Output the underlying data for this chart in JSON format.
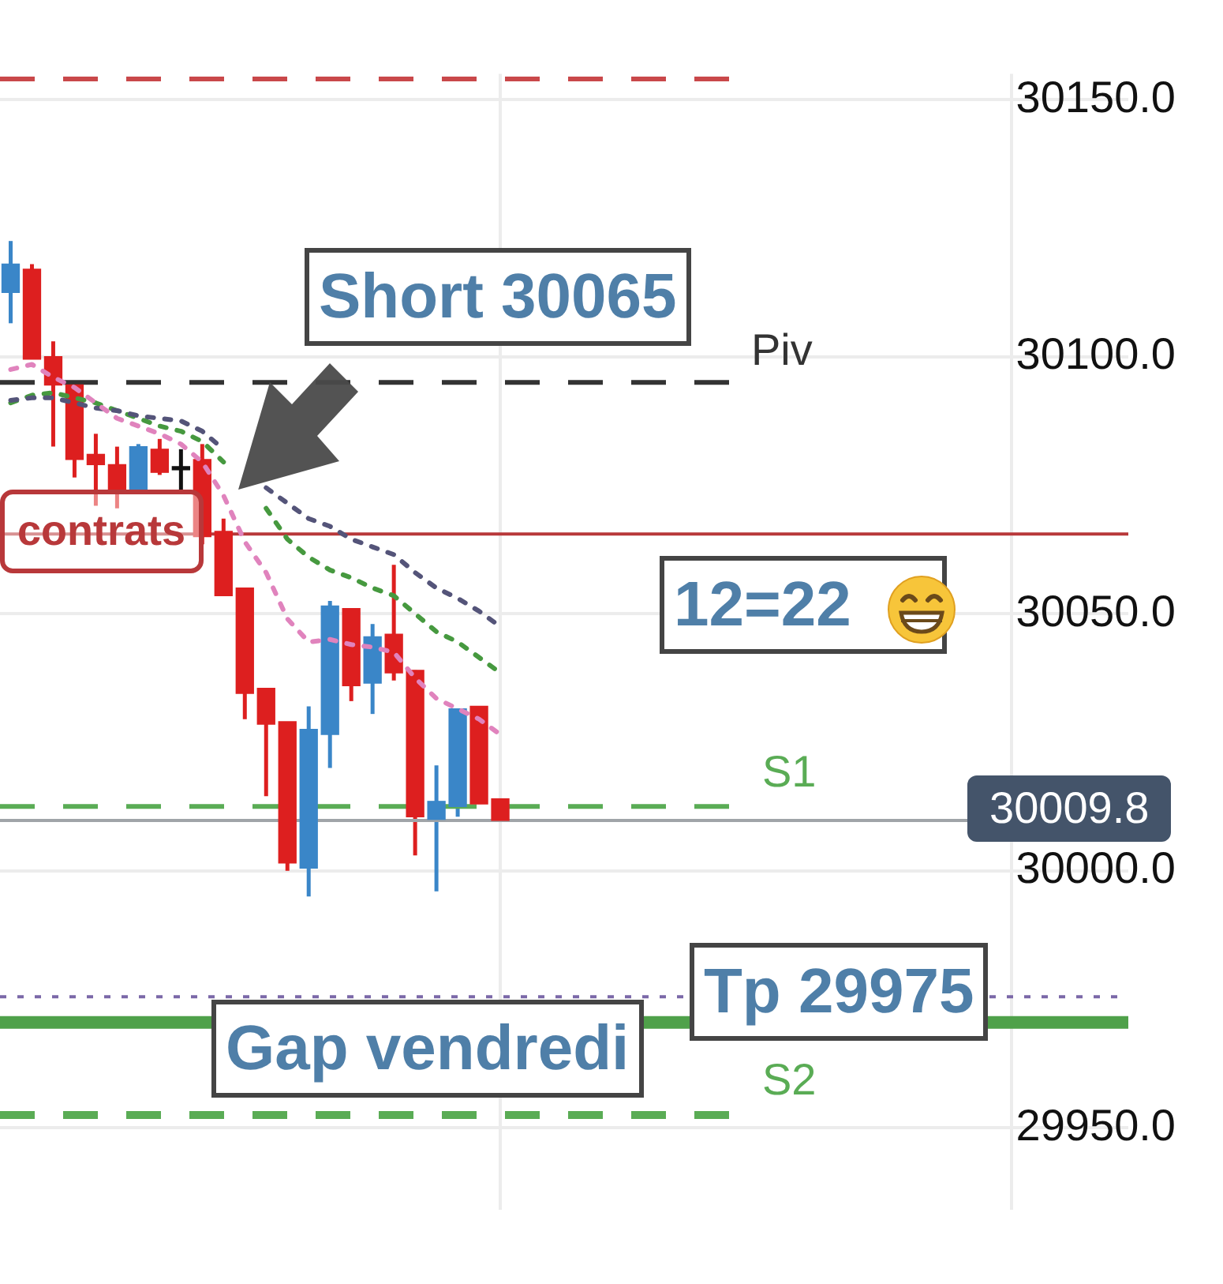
{
  "chart_data": {
    "type": "candlestick",
    "categories": [
      null,
      null,
      null,
      null,
      null,
      null,
      null,
      null,
      null,
      null,
      null,
      null,
      null,
      null,
      null,
      null,
      null,
      null,
      null,
      null,
      null,
      null,
      null,
      null,
      null,
      null,
      null,
      null,
      null,
      null,
      null,
      null,
      null,
      null,
      null,
      null,
      null,
      null,
      null,
      null,
      null,
      null,
      null,
      null,
      null,
      null,
      null,
      null,
      null,
      null,
      null,
      null,
      null
    ],
    "ohlc": [
      [
        30112.5,
        30122.5,
        30106.5,
        30118
      ],
      [
        30117,
        30118,
        30099.5,
        30099.5
      ],
      [
        30100,
        30103,
        30082.5,
        30094.5
      ],
      [
        30094.5,
        30094.5,
        30076.5,
        30080
      ],
      [
        30081,
        30085,
        30071,
        30079
      ],
      [
        30079,
        30082.5,
        30070.5,
        30073.5
      ],
      [
        30073.5,
        30083,
        30073.5,
        30082.5
      ],
      [
        30082,
        30084,
        30077,
        30077.5
      ],
      [
        30078,
        30082,
        30074,
        30078
      ],
      [
        30080,
        30083,
        30063.5,
        30065
      ],
      [
        30066,
        30068.5,
        30053.5,
        30053.5
      ],
      [
        30055,
        30055,
        30029.5,
        30034.5
      ],
      [
        30035.5,
        30035.5,
        30014.5,
        30028.5
      ],
      [
        30029,
        30029,
        30000,
        30001.5
      ],
      [
        30000.5,
        30032,
        29995,
        30027.5
      ],
      [
        30026.5,
        30052.5,
        30020,
        30051.5
      ],
      [
        30051,
        30051,
        30033,
        30036
      ],
      [
        30036.5,
        30048,
        30030.5,
        30045.5
      ],
      [
        30046,
        30059.5,
        30037,
        30038.5
      ],
      [
        30039,
        30039,
        30003,
        30010.5
      ],
      [
        30010,
        30020.5,
        29996,
        30013.5
      ],
      [
        30012.5,
        30031.5,
        30010.5,
        30031.5
      ],
      [
        30032,
        30032,
        30013,
        30013
      ],
      [
        30014,
        30014,
        30009.8,
        30009.8
      ],
      null,
      null,
      null,
      null,
      null,
      null,
      null,
      null,
      null,
      null,
      null,
      null,
      null,
      null,
      null,
      null,
      null,
      null,
      null,
      null,
      null,
      null,
      null,
      null,
      null,
      null,
      null,
      null,
      null
    ],
    "colors": [
      "#3a86c8",
      "#dd1f1f",
      "#dd1f1f",
      "#dd1f1f",
      "#dd1f1f",
      "#dd1f1f",
      "#3a86c8",
      "#dd1f1f",
      "#111111",
      "#dd1f1f",
      "#dd1f1f",
      "#dd1f1f",
      "#dd1f1f",
      "#dd1f1f",
      "#3a86c8",
      "#3a86c8",
      "#dd1f1f",
      "#3a86c8",
      "#dd1f1f",
      "#dd1f1f",
      "#3a86c8",
      "#3a86c8",
      "#dd1f1f",
      "#dd1f1f",
      null,
      null,
      null,
      null,
      null,
      null,
      null,
      null,
      null,
      null,
      null,
      null,
      null,
      null,
      null,
      null,
      null,
      null,
      null,
      null,
      null,
      null,
      null,
      null,
      null,
      null,
      null,
      null,
      null
    ],
    "series": [
      {
        "type": "line",
        "color": "#e083bd",
        "values": [
          30097.5,
          30098.5,
          30096,
          30094,
          30091,
          30088,
          30086.5,
          30085,
          30083,
          30079.5,
          30073,
          30064,
          30058,
          30049,
          30044.5,
          30045,
          30044,
          30043.5,
          30042.5,
          30037.5,
          30033.5,
          30031.5,
          30029.5,
          30026.5,
          null,
          null,
          null,
          null,
          null,
          null,
          null,
          null,
          null,
          null,
          null,
          null,
          null,
          null,
          null,
          null,
          null,
          null,
          null,
          null,
          null,
          null,
          null,
          null,
          null,
          null,
          null,
          null,
          null
        ]
      },
      {
        "type": "line",
        "color": "#545479",
        "values": [
          30091.5,
          30092,
          30092,
          30091,
          30090,
          30089.5,
          30088.5,
          30088,
          30087.5,
          30085.5,
          30082,
          null,
          30074.5,
          30071.5,
          30068.5,
          30067,
          30064.5,
          30063,
          30061.5,
          30058,
          30055,
          30053,
          30050.5,
          30047.5,
          null,
          null,
          null,
          null,
          null,
          null,
          null,
          null,
          null,
          null,
          null,
          null,
          null,
          null,
          null,
          null,
          null,
          null,
          null,
          null,
          null,
          null,
          null,
          null,
          null,
          null,
          null,
          null,
          null
        ]
      },
      {
        "type": "line",
        "color": "#46993f",
        "values": [
          30091,
          30092.5,
          30093,
          30092,
          30091,
          30089.5,
          30088,
          30086.5,
          30085.5,
          30083.5,
          30079.5,
          null,
          30070.5,
          30064.5,
          30061,
          30058.5,
          30057,
          30055,
          30053.5,
          30050,
          30046.5,
          30044.5,
          30041.5,
          30038.5,
          null,
          null,
          null,
          null,
          null,
          null,
          null,
          null,
          null,
          null,
          null,
          null,
          null,
          null,
          null,
          null,
          null,
          null,
          null,
          null,
          null,
          null,
          null,
          null,
          null,
          null,
          null,
          null,
          null
        ]
      }
    ],
    "ylim": [
      29934,
      30155
    ],
    "yticks": [
      {
        "value": 29950,
        "label": "29950.0"
      },
      {
        "value": 30000,
        "label": "30000.0"
      },
      {
        "value": 30050,
        "label": "30050.0"
      },
      {
        "value": 30100,
        "label": "30100.0"
      },
      {
        "value": 30150,
        "label": "30150.0"
      }
    ],
    "grid": true,
    "legend": false,
    "marker": "none",
    "line_style": "dotted",
    "ref_lines": [
      {
        "axis": "y",
        "value": 30154,
        "label": null,
        "color": "#c9484a",
        "line_style": "dashed"
      },
      {
        "axis": "y",
        "value": 30095,
        "label": "Piv",
        "color": "#333333",
        "line_style": "dashed"
      },
      {
        "axis": "y",
        "value": 30065.5,
        "label": "contrats",
        "color": "#b8383a",
        "line_style": "solid"
      },
      {
        "axis": "y",
        "value": 30012.5,
        "label": "S1",
        "color": "#5aac55",
        "line_style": "dashed"
      },
      {
        "axis": "y",
        "value": 30009.8,
        "label": "30009.8",
        "color": "#a0a4a8",
        "line_style": "solid"
      },
      {
        "axis": "y",
        "value": 29975.5,
        "label": null,
        "color": "#7b68a8",
        "line_style": "dotted"
      },
      {
        "axis": "y",
        "value": 29970.5,
        "label": "Gap vendredi",
        "color": "#4fa14a",
        "line_style": "solid"
      },
      {
        "axis": "y",
        "value": 29952.5,
        "label": "S2",
        "color": "#5aac55",
        "line_style": "dashed"
      }
    ],
    "annotations": [
      "Short 30065",
      "12=22",
      "Tp 29975"
    ]
  }
}
